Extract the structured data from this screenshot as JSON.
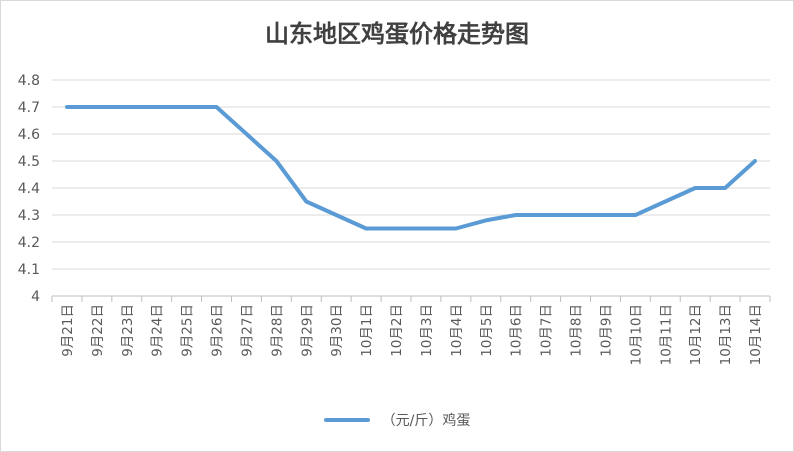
{
  "chart_data": {
    "type": "line",
    "title": "山东地区鸡蛋价格走势图",
    "xlabel": "",
    "ylabel": "",
    "categories": [
      "9月21日",
      "9月22日",
      "9月23日",
      "9月24日",
      "9月25日",
      "9月26日",
      "9月27日",
      "9月28日",
      "9月29日",
      "9月30日",
      "10月1日",
      "10月2日",
      "10月3日",
      "10月4日",
      "10月5日",
      "10月6日",
      "10月7日",
      "10月8日",
      "10月9日",
      "10月10日",
      "10月11日",
      "10月12日",
      "10月13日",
      "10月14日"
    ],
    "series": [
      {
        "name": "（元/斤）鸡蛋",
        "color": "#5b9bd5",
        "values": [
          4.7,
          4.7,
          4.7,
          4.7,
          4.7,
          4.7,
          4.6,
          4.5,
          4.35,
          4.3,
          4.25,
          4.25,
          4.25,
          4.25,
          4.28,
          4.3,
          4.3,
          4.3,
          4.3,
          4.3,
          4.35,
          4.4,
          4.4,
          4.5
        ]
      }
    ],
    "ylim": [
      4,
      4.8
    ],
    "yticks": [
      "4",
      "4.1",
      "4.2",
      "4.3",
      "4.4",
      "4.5",
      "4.6",
      "4.7",
      "4.8"
    ],
    "grid": true,
    "legend": "bottom"
  }
}
